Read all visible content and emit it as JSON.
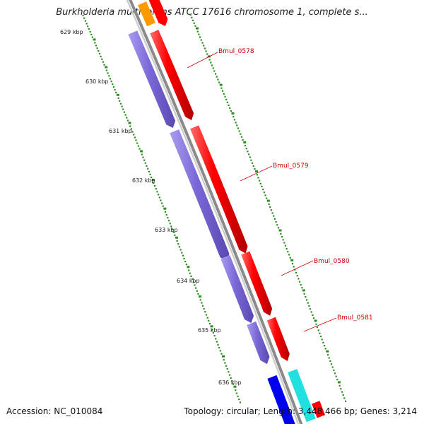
{
  "header": {
    "title": "Burkholderia multivorans ATCC 17616 chromosome 1, complete s..."
  },
  "footer": {
    "accession": "Accession: NC_010084",
    "stats": "Topology: circular; Length: 3,448,466 bp; Genes: 3,214"
  },
  "ticks": [
    {
      "label": "629 kbp",
      "kbp": 629
    },
    {
      "label": "630 kbp",
      "kbp": 630
    },
    {
      "label": "631 kbp",
      "kbp": 631
    },
    {
      "label": "632 kbp",
      "kbp": 632
    },
    {
      "label": "633 kbp",
      "kbp": 633
    },
    {
      "label": "634 kbp",
      "kbp": 634
    },
    {
      "label": "635 kbp",
      "kbp": 635
    },
    {
      "label": "636 kbp",
      "kbp": 636
    }
  ],
  "genes": [
    {
      "name": "Bmul_0578"
    },
    {
      "name": "Bmul_0579"
    },
    {
      "name": "Bmul_0580"
    },
    {
      "name": "Bmul_0581"
    }
  ],
  "colors": {
    "cds": "#ff0000",
    "gene": "#7b68d8",
    "backbone": "#8a8a8a",
    "ticks": "#2e8b22",
    "label": "#cc0000",
    "orange": "#ff9900",
    "cyan": "#22e0e0",
    "blue": "#0000ee"
  }
}
